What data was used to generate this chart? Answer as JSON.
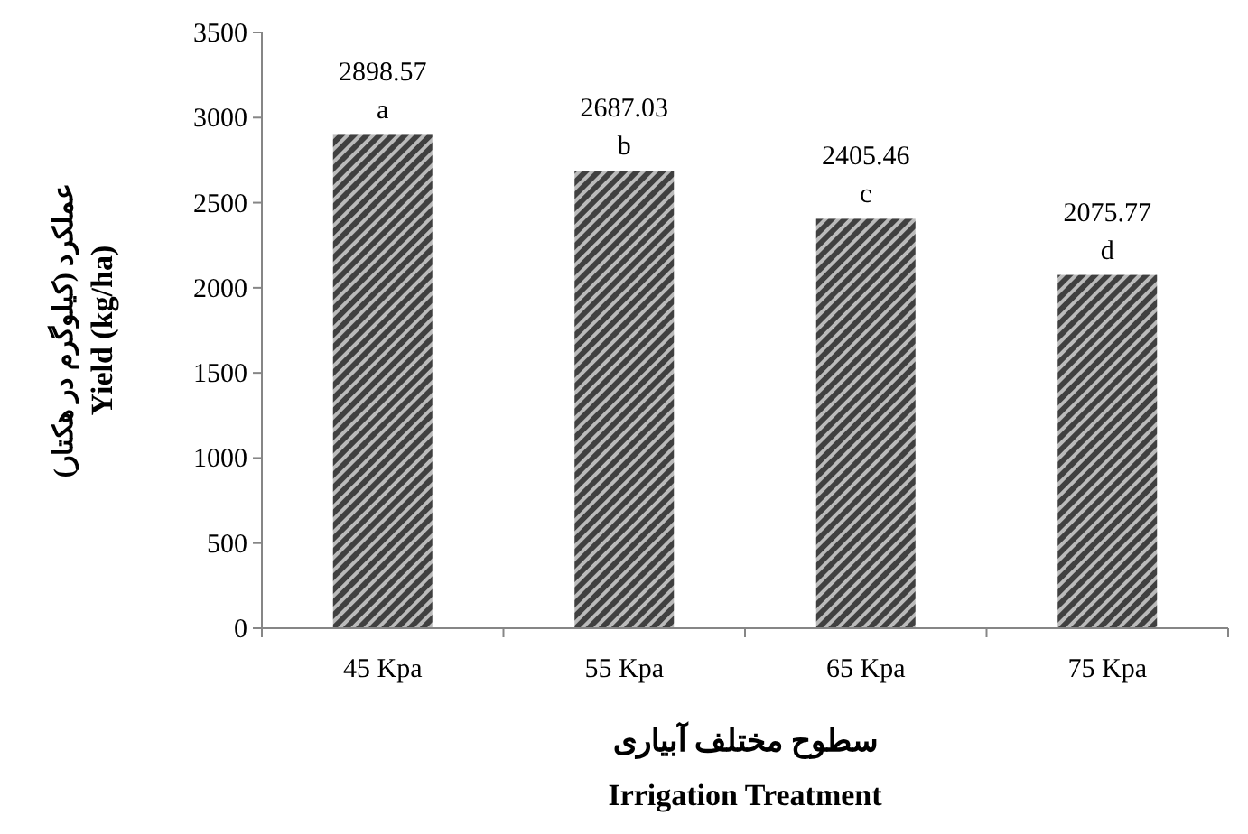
{
  "chart_data": {
    "type": "bar",
    "xlabel": "سطوح مختلف آبیاری\nIrrigation Treatment",
    "ylabel": "عملکرد (کیلوگرم در هکتار)\nYield (kg/ha)",
    "categories": [
      "45 Kpa",
      "55 Kpa",
      "65 Kpa",
      "75 Kpa"
    ],
    "values": [
      2898.57,
      2687.03,
      2405.46,
      2075.77
    ],
    "value_labels": [
      "2898.57",
      "2687.03",
      "2405.46",
      "2075.77"
    ],
    "color": "#404040",
    "ylim": [
      0,
      3500
    ],
    "yticks": [
      0,
      500,
      1000,
      1500,
      2000,
      2500,
      3000,
      3500
    ],
    "annotations": [
      {
        "text": "a",
        "x": "45 Kpa",
        "y": 2898.57
      },
      {
        "text": "b",
        "x": "55 Kpa",
        "y": 2687.03
      },
      {
        "text": "c",
        "x": "65 Kpa",
        "y": 2405.46
      },
      {
        "text": "d",
        "x": "75 Kpa",
        "y": 2075.77
      }
    ]
  }
}
